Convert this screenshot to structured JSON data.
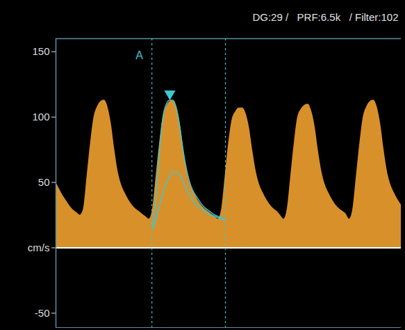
{
  "chart_data": {
    "type": "area",
    "title": "DG:29 /   PRF:6.5k   / Filter:102",
    "annotations": [
      {
        "text": "A",
        "x": 27.8
      }
    ],
    "cursors": [
      27.8,
      49.1
    ],
    "x": [
      0,
      1,
      2,
      3,
      4,
      5,
      6,
      7,
      8,
      9,
      10,
      11,
      12,
      13,
      14,
      15,
      16,
      17,
      18,
      19,
      20,
      21,
      22,
      23,
      24,
      25,
      26,
      27,
      28,
      29,
      30,
      31,
      32,
      33,
      34,
      35,
      36,
      37,
      38,
      39,
      40,
      41,
      42,
      43,
      44,
      45,
      46,
      47,
      48,
      49,
      50,
      51,
      52,
      53,
      54,
      55,
      56,
      57,
      58,
      59,
      60,
      61,
      62,
      63,
      64,
      65,
      66,
      67,
      68,
      69,
      70,
      71,
      72,
      73,
      74,
      75,
      76,
      77,
      78,
      79,
      80,
      81,
      82,
      83,
      84,
      85,
      86,
      87,
      88,
      89,
      90,
      91,
      92,
      93,
      94,
      95,
      96,
      97,
      98,
      99,
      100
    ],
    "series": [
      {
        "type": "area",
        "color": "#f0a030",
        "values": [
          50,
          45,
          40,
          36,
          32,
          29,
          27,
          25,
          30,
          55,
          80,
          100,
          108,
          112,
          113,
          108,
          95,
          75,
          58,
          48,
          42,
          37,
          33,
          30,
          28,
          26,
          24,
          22,
          30,
          55,
          80,
          100,
          108,
          112,
          113,
          108,
          95,
          75,
          58,
          48,
          42,
          37,
          33,
          30,
          28,
          26,
          24,
          22,
          30,
          55,
          80,
          98,
          104,
          107,
          107,
          103,
          92,
          74,
          58,
          48,
          42,
          37,
          33,
          30,
          28,
          25,
          22,
          30,
          55,
          80,
          100,
          106,
          109,
          110,
          105,
          93,
          74,
          58,
          48,
          42,
          37,
          33,
          30,
          28,
          26,
          22,
          30,
          55,
          80,
          100,
          108,
          112,
          113,
          108,
          95,
          75,
          58,
          48,
          42,
          37,
          33
        ]
      },
      {
        "type": "line",
        "color": "#3cc8d0",
        "marker": "triangle",
        "x": [
          28,
          29,
          30,
          31,
          32,
          33,
          34,
          35,
          36,
          37,
          38,
          39,
          40,
          41,
          42,
          43,
          44,
          45,
          46,
          47,
          48,
          49
        ],
        "values": [
          15,
          40,
          75,
          100,
          110,
          113,
          112,
          105,
          90,
          72,
          58,
          48,
          42,
          38,
          34,
          31,
          29,
          27,
          25,
          24,
          23,
          22
        ]
      },
      {
        "type": "line",
        "color": "#3cc8d0",
        "x": [
          28,
          29,
          30,
          31,
          32,
          33,
          34,
          35,
          36,
          37,
          38,
          39,
          40,
          41,
          42,
          43,
          44,
          45,
          46,
          47,
          48,
          49
        ],
        "values": [
          15,
          22,
          32,
          42,
          50,
          55,
          58,
          58,
          55,
          50,
          44,
          39,
          35,
          32,
          30,
          28,
          26,
          25,
          24,
          23,
          22,
          21
        ]
      }
    ],
    "xlim": [
      0,
      100
    ],
    "ylim": [
      -61,
      160
    ],
    "yticks": [
      -50,
      {
        "value": 0,
        "label": "cm/s"
      },
      50,
      100,
      150
    ],
    "tick_labels": "y",
    "grid": false
  }
}
